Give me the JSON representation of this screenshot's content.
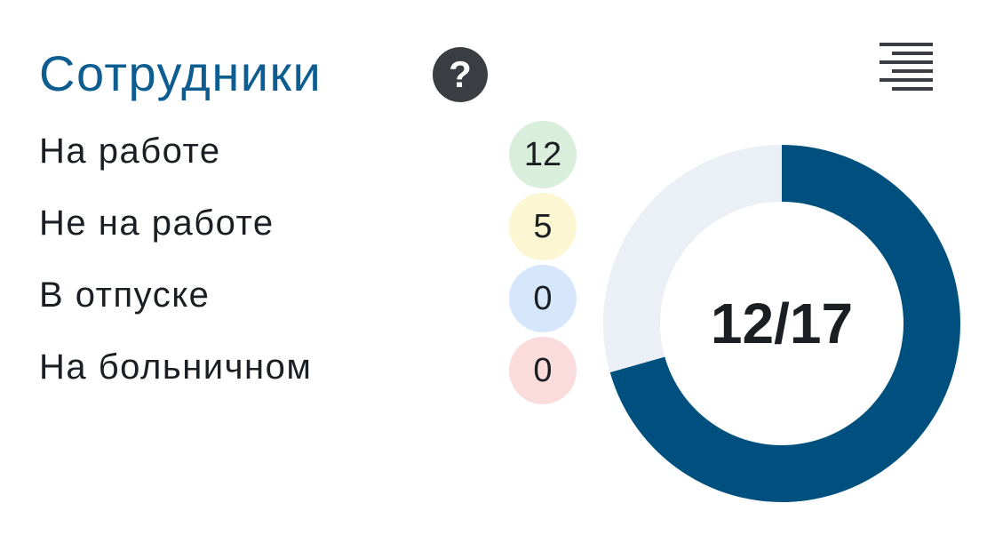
{
  "header": {
    "title": "Сотрудники",
    "help_glyph": "?",
    "help_icon": "question-circle-icon",
    "menu_icon": "align-right-lines-icon"
  },
  "legend": [
    {
      "label": "На работе",
      "value": 12,
      "badge_color": "#d9eedb"
    },
    {
      "label": "Не на работе",
      "value": 5,
      "badge_color": "#fcf7d2"
    },
    {
      "label": "В отпуске",
      "value": 0,
      "badge_color": "#d6e7fb"
    },
    {
      "label": "На больничном",
      "value": 0,
      "badge_color": "#fadcdc"
    }
  ],
  "chart_data": {
    "type": "donut",
    "center_label": "12/17",
    "total": 17,
    "slices": [
      {
        "label": "На работе",
        "value": 12,
        "color": "#00507f"
      },
      {
        "label": "Не на работе",
        "value": 5,
        "color": "#eaf0f5"
      }
    ]
  },
  "colors": {
    "title": "#0d5d91",
    "text": "#1b1f24",
    "help_bg": "#3a3d42",
    "menu_lines": "#3a3d42"
  }
}
